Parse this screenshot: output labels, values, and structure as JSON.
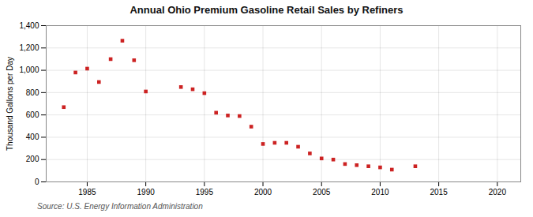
{
  "chart_data": {
    "type": "scatter",
    "title": "Annual Ohio Premium Gasoline Retail Sales by Refiners",
    "y_label": "Thousand Gallons per Day",
    "annotations": [
      "Source: U.S. Energy Information Administration"
    ],
    "x": [
      1983,
      1984,
      1985,
      1986,
      1987,
      1988,
      1989,
      1990,
      1993,
      1994,
      1995,
      1996,
      1997,
      1998,
      1999,
      2000,
      2001,
      2002,
      2003,
      2004,
      2005,
      2006,
      2007,
      2008,
      2009,
      2010,
      2011,
      2013
    ],
    "values": [
      670,
      980,
      1015,
      895,
      1100,
      1265,
      1090,
      810,
      850,
      830,
      795,
      620,
      595,
      590,
      495,
      340,
      350,
      350,
      315,
      255,
      210,
      200,
      160,
      150,
      140,
      130,
      110,
      140
    ],
    "color": "#cc2222",
    "marker": "square",
    "xlim": [
      1981.5,
      2022
    ],
    "xticks": [
      1985,
      1990,
      1995,
      2000,
      2005,
      2010,
      2015,
      2020
    ],
    "ylim": [
      0,
      1400
    ],
    "yticks": [
      0,
      200,
      400,
      600,
      800,
      {
        "value": 1000,
        "label": "1,000"
      },
      {
        "value": 1200,
        "label": "1,200"
      },
      {
        "value": 1400,
        "label": "1,400"
      }
    ],
    "grid": true
  }
}
